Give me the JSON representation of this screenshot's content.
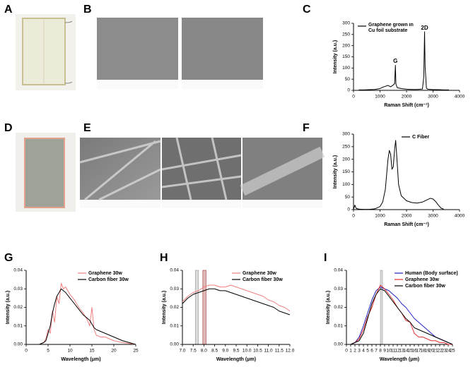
{
  "panel_labels": [
    "A",
    "B",
    "C",
    "D",
    "E",
    "F",
    "G",
    "H",
    "I"
  ],
  "chart_data": [
    {
      "type": "line",
      "xlabel": "Raman Shift (cm⁻¹)",
      "ylabel": "Intensity (a.u.)",
      "legend": "upper left",
      "xlim": [
        0,
        4000
      ],
      "xticks": [
        0,
        1000,
        2000,
        3000,
        4000
      ],
      "ylim": [
        0,
        300
      ],
      "yticks": [
        0,
        50,
        100,
        150,
        200,
        250,
        300
      ],
      "x": [
        200,
        400,
        600,
        800,
        1000,
        1100,
        1200,
        1300,
        1400,
        1500,
        1550,
        1580,
        1600,
        1650,
        1800,
        2000,
        2200,
        2400,
        2600,
        2650,
        2680,
        2700,
        2750,
        2800,
        3000,
        3200,
        3400,
        3600
      ],
      "series": [
        {
          "name": "Graphene grown in Cu foil substrate",
          "color": "#000000",
          "values": [
            2,
            2,
            3,
            4,
            8,
            14,
            18,
            22,
            16,
            24,
            30,
            112,
            28,
            12,
            8,
            5,
            4,
            4,
            6,
            60,
            262,
            110,
            10,
            5,
            3,
            3,
            2,
            2
          ]
        }
      ],
      "annotations": [
        {
          "text": "G",
          "x": 1580,
          "y": 130
        },
        {
          "text": "2D",
          "x": 2680,
          "y": 278
        }
      ]
    },
    {
      "type": "line",
      "xlabel": "Raman Shift (cm⁻¹)",
      "ylabel": "Intensity (a.u.)",
      "legend": "upper right",
      "xlim": [
        0,
        4000
      ],
      "xticks": [
        0,
        1000,
        2000,
        3000,
        4000
      ],
      "ylim": [
        0,
        300
      ],
      "yticks": [
        0,
        50,
        100,
        150,
        200,
        250,
        300
      ],
      "x": [
        0,
        50,
        100,
        200,
        400,
        600,
        800,
        1000,
        1100,
        1200,
        1250,
        1300,
        1350,
        1400,
        1450,
        1500,
        1550,
        1590,
        1620,
        1700,
        1800,
        2000,
        2200,
        2400,
        2600,
        2800,
        2900,
        3000,
        3100,
        3200,
        3300,
        3400
      ],
      "series": [
        {
          "name": "C Fiber",
          "color": "#000000",
          "values": [
            0,
            18,
            5,
            2,
            1,
            1,
            3,
            12,
            30,
            80,
            140,
            200,
            235,
            220,
            160,
            170,
            240,
            275,
            230,
            100,
            55,
            35,
            28,
            26,
            30,
            40,
            45,
            42,
            32,
            18,
            6,
            2
          ]
        }
      ]
    },
    {
      "type": "line",
      "xlabel": "Wavelength (μm)",
      "ylabel": "Intensity (a.u.)",
      "legend": "upper right",
      "xlim": [
        0,
        25
      ],
      "xticks": [
        0,
        5,
        10,
        15,
        20,
        25
      ],
      "ylim": [
        0,
        0.04
      ],
      "yticks": [
        {
          "value": 0,
          "label": "0.00"
        },
        0.01,
        0.02,
        0.03,
        0.04
      ],
      "x": [
        0,
        1,
        2,
        3,
        4,
        4.5,
        5,
        5.5,
        6,
        6.5,
        7,
        7.5,
        8,
        8.5,
        9,
        10,
        11,
        12,
        13,
        14,
        14.5,
        15,
        15.5,
        16,
        17,
        18,
        19,
        20,
        22,
        25
      ],
      "series": [
        {
          "name": "Graphene 30w",
          "color": "#f08080",
          "values": [
            0,
            0,
            0,
            0,
            0.001,
            0.003,
            0.008,
            0.006,
            0.018,
            0.012,
            0.026,
            0.022,
            0.033,
            0.03,
            0.031,
            0.027,
            0.024,
            0.02,
            0.017,
            0.013,
            0.01,
            0.02,
            0.008,
            0.005,
            0.004,
            0.004,
            0.003,
            0.002,
            0.001,
            0
          ]
        },
        {
          "name": "Carbon fiber 30w",
          "color": "#000000",
          "values": [
            0,
            0,
            0,
            0,
            0.001,
            0.002,
            0.006,
            0.01,
            0.017,
            0.022,
            0.026,
            0.028,
            0.03,
            0.029,
            0.028,
            0.025,
            0.022,
            0.019,
            0.016,
            0.014,
            0.013,
            0.011,
            0.009,
            0.008,
            0.007,
            0.006,
            0.005,
            0.004,
            0.002,
            0
          ]
        }
      ]
    },
    {
      "type": "line",
      "xlabel": "Wavelength (μm)",
      "ylabel": "Intensity (a.u.)",
      "legend": "upper right",
      "xlim": [
        7,
        12
      ],
      "xticks": [
        {
          "value": 7,
          "label": "7.0"
        },
        7.5,
        {
          "value": 8,
          "label": "8.0"
        },
        8.5,
        {
          "value": 9,
          "label": "9.0"
        },
        9.5,
        {
          "value": 10,
          "label": "10.0"
        },
        10.5,
        {
          "value": 11,
          "label": "11.0"
        },
        11.5,
        {
          "value": 12,
          "label": "12.0"
        }
      ],
      "ylim": [
        0,
        0.04
      ],
      "yticks": [
        {
          "value": 0,
          "label": "0.00"
        },
        0.01,
        0.02,
        0.03,
        0.04
      ],
      "bands": [
        {
          "x": [
            7.6,
            7.75
          ],
          "color": "#999999"
        },
        {
          "x": [
            7.95,
            8.1
          ],
          "color": "#a33333"
        }
      ],
      "x": [
        7,
        7.25,
        7.5,
        7.75,
        8,
        8.25,
        8.5,
        8.75,
        9,
        9.25,
        9.5,
        9.75,
        10,
        10.25,
        10.5,
        10.75,
        11,
        11.25,
        11.5,
        11.75,
        12
      ],
      "series": [
        {
          "name": "Graphene 30w",
          "color": "#f08080",
          "values": [
            0.023,
            0.026,
            0.028,
            0.029,
            0.031,
            0.032,
            0.032,
            0.031,
            0.031,
            0.032,
            0.031,
            0.03,
            0.029,
            0.028,
            0.027,
            0.026,
            0.024,
            0.023,
            0.021,
            0.02,
            0.018
          ]
        },
        {
          "name": "Carbon fiber 30w",
          "color": "#000000",
          "values": [
            0.022,
            0.025,
            0.027,
            0.028,
            0.029,
            0.03,
            0.03,
            0.029,
            0.029,
            0.028,
            0.027,
            0.026,
            0.025,
            0.024,
            0.023,
            0.022,
            0.021,
            0.02,
            0.018,
            0.017,
            0.016
          ]
        }
      ]
    },
    {
      "type": "line",
      "xlabel": "Wavelength (μm)",
      "ylabel": "Intensity (a.u.)",
      "legend": "upper right",
      "xlim": [
        0,
        25
      ],
      "xticks": [
        0,
        1,
        2,
        3,
        4,
        5,
        6,
        7,
        8,
        9,
        10,
        11,
        12,
        13,
        14,
        15,
        16,
        17,
        18,
        19,
        20,
        21,
        22,
        23,
        24,
        25
      ],
      "ylim": [
        0,
        0.04
      ],
      "yticks": [
        {
          "value": 0,
          "label": "0.00"
        },
        0.01,
        0.02,
        0.03,
        0.04
      ],
      "bands": [
        {
          "x": [
            8,
            8.5
          ],
          "color": "#999999"
        }
      ],
      "x": [
        0,
        1,
        2,
        3,
        4,
        5,
        6,
        7,
        8,
        9,
        10,
        11,
        12,
        13,
        14,
        15,
        16,
        17,
        18,
        19,
        20,
        21,
        22,
        23,
        24,
        25
      ],
      "series": [
        {
          "name": "Human (Body surface)",
          "color": "#2020c0",
          "values": [
            0,
            0,
            0.001,
            0.004,
            0.01,
            0.017,
            0.024,
            0.029,
            0.031,
            0.03,
            0.029,
            0.027,
            0.025,
            0.022,
            0.02,
            0.017,
            0.014,
            0.012,
            0.01,
            0.008,
            0.006,
            0.004,
            0.003,
            0.002,
            0.001,
            0
          ]
        },
        {
          "name": "Graphene 30w",
          "color": "#e03030",
          "values": [
            0,
            0,
            0.001,
            0.003,
            0.008,
            0.015,
            0.02,
            0.027,
            0.032,
            0.03,
            0.027,
            0.024,
            0.02,
            0.017,
            0.013,
            0.012,
            0.006,
            0.004,
            0.004,
            0.003,
            0.002,
            0.002,
            0.001,
            0.001,
            0,
            0
          ]
        },
        {
          "name": "Carbon fiber 30w",
          "color": "#000000",
          "values": [
            0,
            0,
            0.001,
            0.002,
            0.006,
            0.014,
            0.022,
            0.027,
            0.03,
            0.029,
            0.026,
            0.023,
            0.02,
            0.017,
            0.014,
            0.012,
            0.009,
            0.008,
            0.007,
            0.006,
            0.005,
            0.004,
            0.003,
            0.002,
            0.001,
            0
          ]
        }
      ]
    }
  ]
}
